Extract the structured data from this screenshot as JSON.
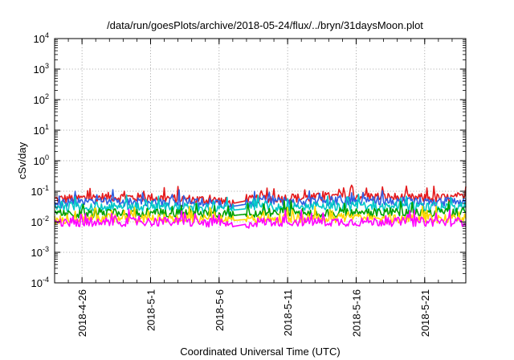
{
  "chart_data": {
    "type": "line",
    "title": "/data/run/goesPlots/archive/2018-05-24/flux/../bryn/31daysMoon.plot",
    "xlabel": "Coordinated Universal Time (UTC)",
    "ylabel": "cSv/day",
    "y_scale": "log",
    "ylim": [
      0.0001,
      10000
    ],
    "y_ticks": [
      {
        "value": 0.0001,
        "base": "10",
        "exp": "-4"
      },
      {
        "value": 0.001,
        "base": "10",
        "exp": "-3"
      },
      {
        "value": 0.01,
        "base": "10",
        "exp": "-2"
      },
      {
        "value": 0.1,
        "base": "10",
        "exp": "-1"
      },
      {
        "value": 1,
        "base": "10",
        "exp": "0"
      },
      {
        "value": 10,
        "base": "10",
        "exp": "1"
      },
      {
        "value": 100,
        "base": "10",
        "exp": "2"
      },
      {
        "value": 1000,
        "base": "10",
        "exp": "3"
      },
      {
        "value": 10000,
        "base": "10",
        "exp": "4"
      }
    ],
    "xlim": [
      "2018-04-24",
      "2018-05-24"
    ],
    "x_ticks": [
      "2018-4-26",
      "2018-5-1",
      "2018-5-6",
      "2018-5-11",
      "2018-5-16",
      "2018-5-21"
    ],
    "x_tick_dates": [
      "2018-04-26",
      "2018-05-01",
      "2018-05-06",
      "2018-05-11",
      "2018-05-16",
      "2018-05-21"
    ],
    "grid": true,
    "data_gap": [
      "2018-05-07",
      "2018-05-08"
    ],
    "series": [
      {
        "color": "#e41a1c",
        "x": [
          "2018-04-24",
          "2018-04-28",
          "2018-05-02",
          "2018-05-06",
          "2018-05-07",
          "2018-05-09",
          "2018-05-12",
          "2018-05-16",
          "2018-05-20",
          "2018-05-24"
        ],
        "y": [
          0.055,
          0.065,
          0.06,
          0.05,
          0.04,
          0.06,
          0.06,
          0.07,
          0.06,
          0.06
        ]
      },
      {
        "color": "#2f5fe0",
        "x": [
          "2018-04-24",
          "2018-04-28",
          "2018-05-02",
          "2018-05-06",
          "2018-05-07",
          "2018-05-09",
          "2018-05-12",
          "2018-05-16",
          "2018-05-20",
          "2018-05-24"
        ],
        "y": [
          0.04,
          0.045,
          0.045,
          0.04,
          0.032,
          0.045,
          0.045,
          0.05,
          0.045,
          0.045
        ]
      },
      {
        "color": "#00c8c8",
        "x": [
          "2018-04-24",
          "2018-04-28",
          "2018-05-02",
          "2018-05-06",
          "2018-05-07",
          "2018-05-09",
          "2018-05-12",
          "2018-05-16",
          "2018-05-20",
          "2018-05-24"
        ],
        "y": [
          0.03,
          0.032,
          0.03,
          0.028,
          0.024,
          0.03,
          0.03,
          0.032,
          0.03,
          0.03
        ]
      },
      {
        "color": "#00a000",
        "x": [
          "2018-04-24",
          "2018-04-28",
          "2018-05-02",
          "2018-05-06",
          "2018-05-07",
          "2018-05-09",
          "2018-05-12",
          "2018-05-16",
          "2018-05-20",
          "2018-05-24"
        ],
        "y": [
          0.018,
          0.02,
          0.02,
          0.018,
          0.016,
          0.02,
          0.02,
          0.02,
          0.02,
          0.02
        ]
      },
      {
        "color": "#ffd700",
        "x": [
          "2018-04-24",
          "2018-04-28",
          "2018-05-02",
          "2018-05-06",
          "2018-05-07",
          "2018-05-09",
          "2018-05-12",
          "2018-05-16",
          "2018-05-20",
          "2018-05-24"
        ],
        "y": [
          0.012,
          0.013,
          0.013,
          0.012,
          0.011,
          0.013,
          0.013,
          0.013,
          0.013,
          0.013
        ]
      },
      {
        "color": "#ff00ff",
        "x": [
          "2018-04-24",
          "2018-04-28",
          "2018-05-02",
          "2018-05-06",
          "2018-05-07",
          "2018-05-09",
          "2018-05-12",
          "2018-05-16",
          "2018-05-20",
          "2018-05-24"
        ],
        "y": [
          0.009,
          0.01,
          0.01,
          0.009,
          0.007,
          0.01,
          0.01,
          0.01,
          0.01,
          0.01
        ]
      }
    ]
  }
}
